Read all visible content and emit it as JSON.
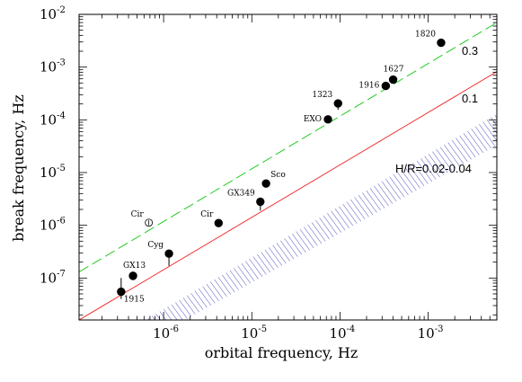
{
  "chart_data": {
    "type": "scatter",
    "xlabel": "orbital frequency, Hz",
    "ylabel": "break frequency, Hz",
    "xscale": "log",
    "yscale": "log",
    "xlim": [
      1.1e-07,
      0.006
    ],
    "ylim": [
      1.6e-08,
      0.01
    ],
    "x_ticks": [
      {
        "base": "10",
        "exp": "-6",
        "value": 1e-06
      },
      {
        "base": "10",
        "exp": "-5",
        "value": 1e-05
      },
      {
        "base": "10",
        "exp": "-4",
        "value": 0.0001
      },
      {
        "base": "10",
        "exp": "-3",
        "value": 0.001
      }
    ],
    "y_ticks": [
      {
        "base": "10",
        "exp": "-7",
        "value": 1e-07
      },
      {
        "base": "10",
        "exp": "-6",
        "value": 1e-06
      },
      {
        "base": "10",
        "exp": "-5",
        "value": 1e-05
      },
      {
        "base": "10",
        "exp": "-4",
        "value": 0.0001
      },
      {
        "base": "10",
        "exp": "-3",
        "value": 0.001
      },
      {
        "base": "10",
        "exp": "-2",
        "value": 0.01
      }
    ],
    "points": [
      {
        "label": "1915",
        "x": 3.3e-07,
        "y": 5.5e-08,
        "filled": true,
        "label_pos": "below-right",
        "err": [
          4e-08,
          1e-07
        ]
      },
      {
        "label": "GX13",
        "x": 4.5e-07,
        "y": 1.1e-07,
        "filled": true,
        "label_pos": "above"
      },
      {
        "label": "Cir",
        "x": 6.8e-07,
        "y": 1.12e-06,
        "filled": false,
        "label_pos": "above-left"
      },
      {
        "label": "Cyg",
        "x": 1.15e-06,
        "y": 2.9e-07,
        "filled": true,
        "label_pos": "above-left",
        "err": [
          1.7e-07,
          2.9e-07
        ]
      },
      {
        "label": "Cir",
        "x": 4.2e-06,
        "y": 1.1e-06,
        "filled": true,
        "label_pos": "above-left"
      },
      {
        "label": "GX349",
        "x": 1.25e-05,
        "y": 2.8e-06,
        "filled": true,
        "label_pos": "above-left",
        "err": [
          1.9e-06,
          2.8e-06
        ]
      },
      {
        "label": "Sco",
        "x": 1.45e-05,
        "y": 6.2e-06,
        "filled": true,
        "label_pos": "above-right"
      },
      {
        "label": "EXO",
        "x": 7.3e-05,
        "y": 0.000102,
        "filled": true,
        "label_pos": "left"
      },
      {
        "label": "1323",
        "x": 9.5e-05,
        "y": 0.000205,
        "filled": true,
        "label_pos": "above-left",
        "err": [
          0.000155,
          0.000205
        ]
      },
      {
        "label": "1916",
        "x": 0.00033,
        "y": 0.00044,
        "filled": true,
        "label_pos": "left"
      },
      {
        "label": "1627",
        "x": 0.0004,
        "y": 0.00058,
        "filled": true,
        "label_pos": "above"
      },
      {
        "label": "1820",
        "x": 0.0014,
        "y": 0.0029,
        "filled": true,
        "label_pos": "above-left"
      }
    ],
    "lines": [
      {
        "label": "0.3",
        "style": "dashed",
        "color": "#22cc22",
        "x1": 1.1e-07,
        "y1": 1.3e-07,
        "x2": 0.006,
        "y2": 0.007
      },
      {
        "label": "0.1",
        "style": "solid",
        "color": "#ee3333",
        "x1": 1.1e-07,
        "y1": 1.6e-08,
        "x2": 0.006,
        "y2": 0.00082
      }
    ],
    "band": {
      "label": "H/R=0.02-0.04",
      "color": "#2a2ab0",
      "upper": {
        "x1": 6.2e-07,
        "y1": 1.6e-08,
        "x2": 0.006,
        "y2": 0.00013
      },
      "lower": {
        "x1": 1.75e-06,
        "y1": 1.6e-08,
        "x2": 0.006,
        "y2": 3.3e-05
      }
    }
  }
}
